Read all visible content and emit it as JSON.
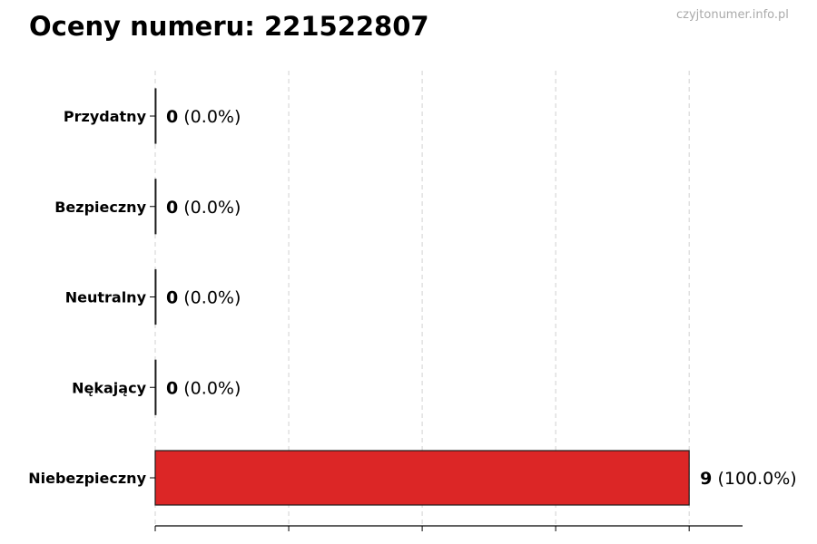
{
  "chart_data": {
    "type": "bar",
    "orientation": "horizontal",
    "title": "Oceny numeru: 221522807",
    "watermark": "czyjtonumer.info.pl",
    "categories": [
      "Przydatny",
      "Bezpieczny",
      "Neutralny",
      "Nękający",
      "Niebezpieczny"
    ],
    "values": [
      0,
      0,
      0,
      0,
      9
    ],
    "value_labels": [
      "0",
      "0",
      "0",
      "0",
      "9"
    ],
    "percent_labels": [
      "(0.0%)",
      "(0.0%)",
      "(0.0%)",
      "(0.0%)",
      "(100.0%)"
    ],
    "xlim": [
      0,
      9.9
    ],
    "xticks": [
      0,
      2.25,
      4.5,
      6.75,
      9
    ],
    "xtick_labels_shown": false,
    "grid": "x-dashed",
    "colors": {
      "bar": "#dc2626",
      "edge": "#1a1a1a",
      "grid": "#d0d0d0"
    },
    "xlabel": "",
    "ylabel": ""
  }
}
